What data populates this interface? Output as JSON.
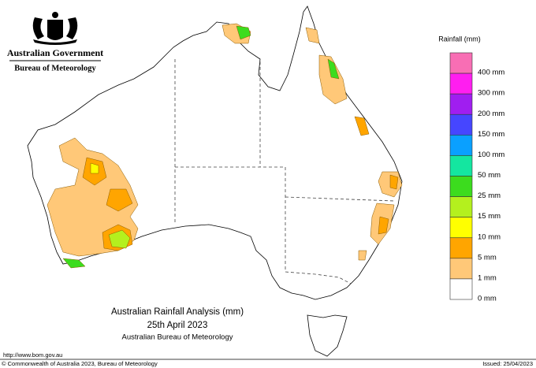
{
  "header": {
    "government": "Australian Government",
    "bureau": "Bureau of Meteorology"
  },
  "legend": {
    "title": "Rainfall (mm)",
    "items": [
      {
        "label": "400 mm",
        "color": "#f86eb4"
      },
      {
        "label": "300 mm",
        "color": "#ff1ef0"
      },
      {
        "label": "200 mm",
        "color": "#a01ef0"
      },
      {
        "label": "150 mm",
        "color": "#4646ff"
      },
      {
        "label": "100 mm",
        "color": "#0aa0ff"
      },
      {
        "label": "50 mm",
        "color": "#14e6a0"
      },
      {
        "label": "25 mm",
        "color": "#3cdc1e"
      },
      {
        "label": "15 mm",
        "color": "#b4f01e"
      },
      {
        "label": "10 mm",
        "color": "#ffff00"
      },
      {
        "label": "5 mm",
        "color": "#ffa500"
      },
      {
        "label": "1 mm",
        "color": "#ffc878"
      },
      {
        "label": "0 mm",
        "color": "#ffffff"
      }
    ]
  },
  "title": {
    "line1": "Australian Rainfall Analysis (mm)",
    "line2": "25th April 2023",
    "line3": "Australian Bureau of Meteorology"
  },
  "footer": {
    "url": "http://www.bom.gov.au",
    "copyright": "© Commonwealth of Australia 2023, Bureau of Meteorology",
    "issued": "Issued: 25/04/2023"
  }
}
